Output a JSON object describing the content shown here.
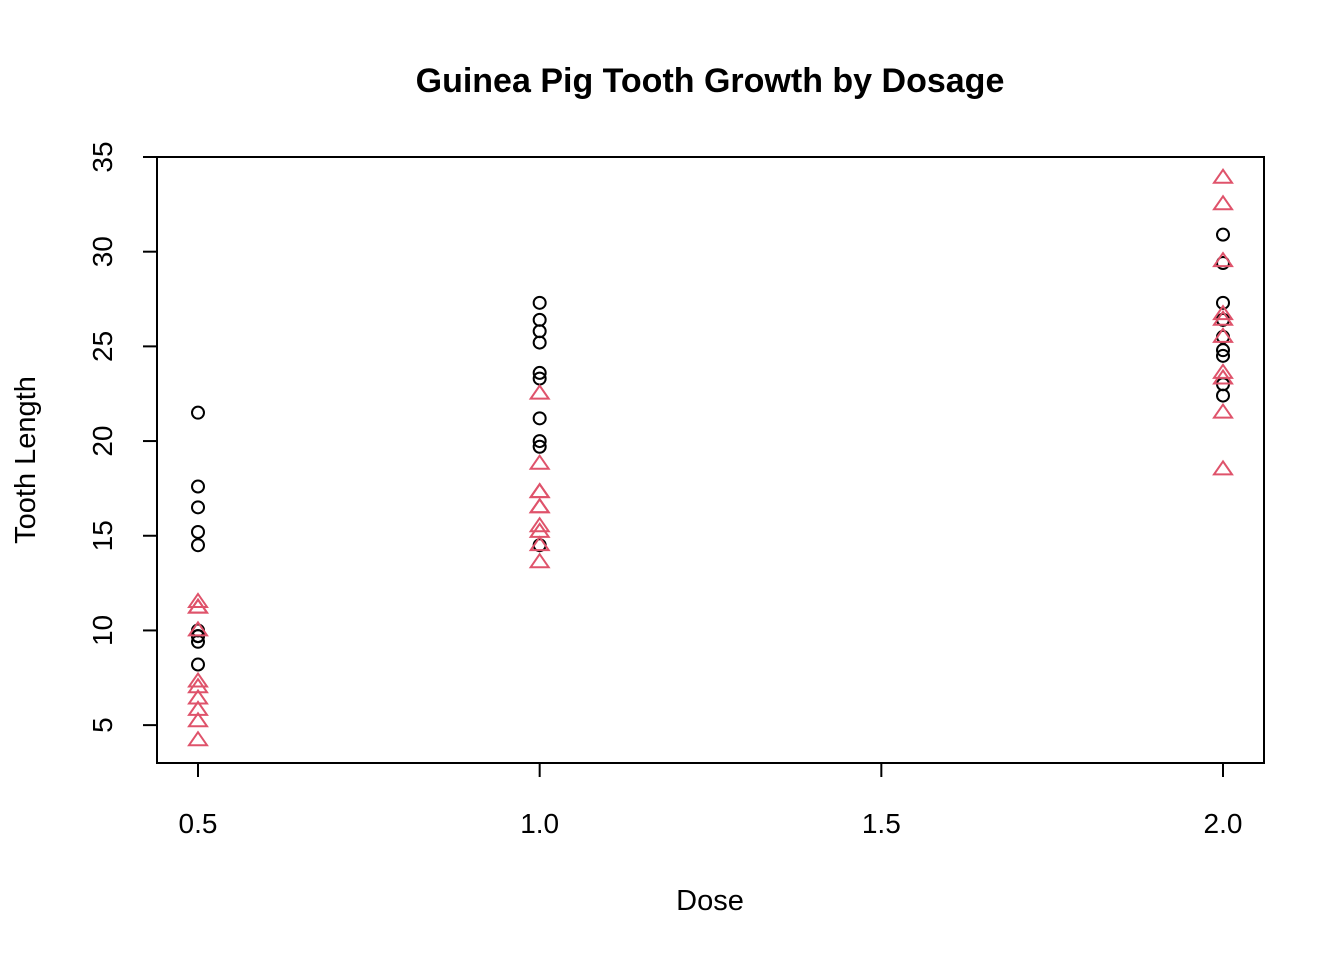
{
  "chart_data": {
    "type": "scatter",
    "title": "Guinea Pig Tooth Growth by Dosage",
    "xlabel": "Dose",
    "ylabel": "Tooth Length",
    "xlim": [
      0.44,
      2.06
    ],
    "ylim": [
      3.0,
      35.0
    ],
    "x_ticks": [
      "0.5",
      "1.0",
      "1.5",
      "2.0"
    ],
    "y_ticks": [
      "5",
      "10",
      "15",
      "20",
      "25",
      "30",
      "35"
    ],
    "legend": null,
    "series": [
      {
        "marker": "circle",
        "color": "#000000",
        "points": [
          [
            0.5,
            15.2
          ],
          [
            0.5,
            21.5
          ],
          [
            0.5,
            17.6
          ],
          [
            0.5,
            9.7
          ],
          [
            0.5,
            14.5
          ],
          [
            0.5,
            10.0
          ],
          [
            0.5,
            8.2
          ],
          [
            0.5,
            9.4
          ],
          [
            0.5,
            16.5
          ],
          [
            0.5,
            9.7
          ],
          [
            1.0,
            19.7
          ],
          [
            1.0,
            23.3
          ],
          [
            1.0,
            23.6
          ],
          [
            1.0,
            26.4
          ],
          [
            1.0,
            20.0
          ],
          [
            1.0,
            25.2
          ],
          [
            1.0,
            25.8
          ],
          [
            1.0,
            21.2
          ],
          [
            1.0,
            14.5
          ],
          [
            1.0,
            27.3
          ],
          [
            2.0,
            25.5
          ],
          [
            2.0,
            26.4
          ],
          [
            2.0,
            22.4
          ],
          [
            2.0,
            24.5
          ],
          [
            2.0,
            24.8
          ],
          [
            2.0,
            30.9
          ],
          [
            2.0,
            26.4
          ],
          [
            2.0,
            27.3
          ],
          [
            2.0,
            29.4
          ],
          [
            2.0,
            23.0
          ]
        ]
      },
      {
        "marker": "triangle",
        "color": "#DF536B",
        "points": [
          [
            0.5,
            4.2
          ],
          [
            0.5,
            11.5
          ],
          [
            0.5,
            7.3
          ],
          [
            0.5,
            5.8
          ],
          [
            0.5,
            6.4
          ],
          [
            0.5,
            10.0
          ],
          [
            0.5,
            11.2
          ],
          [
            0.5,
            11.2
          ],
          [
            0.5,
            5.2
          ],
          [
            0.5,
            7.0
          ],
          [
            1.0,
            16.5
          ],
          [
            1.0,
            16.5
          ],
          [
            1.0,
            15.2
          ],
          [
            1.0,
            17.3
          ],
          [
            1.0,
            22.5
          ],
          [
            1.0,
            17.3
          ],
          [
            1.0,
            13.6
          ],
          [
            1.0,
            14.5
          ],
          [
            1.0,
            18.8
          ],
          [
            1.0,
            15.5
          ],
          [
            2.0,
            23.6
          ],
          [
            2.0,
            18.5
          ],
          [
            2.0,
            33.9
          ],
          [
            2.0,
            25.5
          ],
          [
            2.0,
            26.4
          ],
          [
            2.0,
            32.5
          ],
          [
            2.0,
            26.7
          ],
          [
            2.0,
            21.5
          ],
          [
            2.0,
            23.3
          ],
          [
            2.0,
            29.5
          ]
        ]
      }
    ]
  }
}
